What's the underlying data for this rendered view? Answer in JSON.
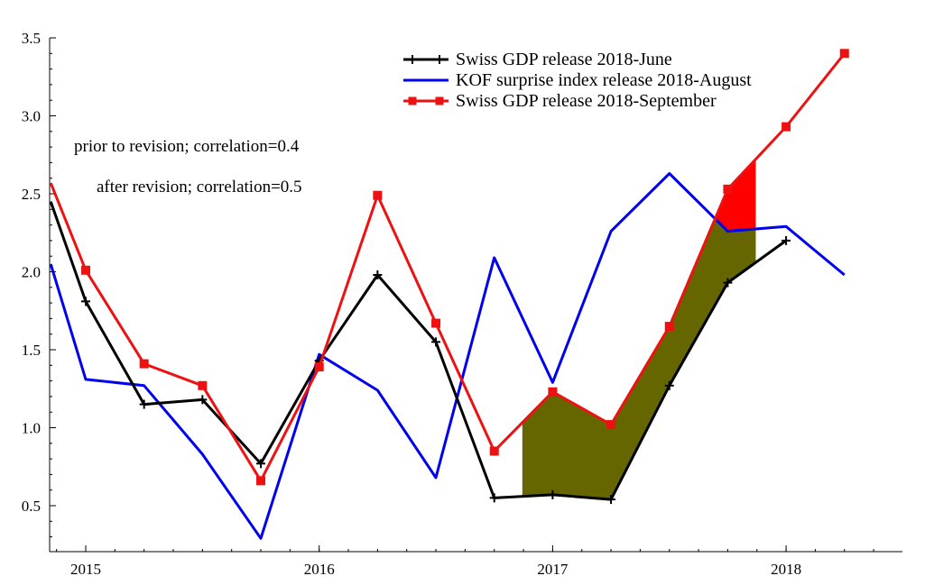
{
  "chart_data": {
    "type": "line",
    "title": "",
    "xlabel": "",
    "ylabel": "",
    "xlim": [
      2014.85,
      2018.5
    ],
    "ylim": [
      0.3,
      3.5
    ],
    "x_ticks": [
      2015,
      2016,
      2017,
      2018
    ],
    "y_ticks": [
      0.5,
      1.0,
      1.5,
      2.0,
      2.5,
      3.0,
      3.5
    ],
    "y_tick_labels": [
      "0.5",
      "1.0",
      "1.5",
      "2.0",
      "2.5",
      "3.0",
      "3.5"
    ],
    "x_tick_labels": [
      "2015",
      "2016",
      "2017",
      "2018"
    ],
    "grid": false,
    "legend_position": "top-right",
    "series": [
      {
        "name": "Swiss GDP release 2018-June",
        "color": "#000000",
        "marker": "plus",
        "x": [
          2014.85,
          2015.0,
          2015.25,
          2015.5,
          2015.75,
          2016.0,
          2016.25,
          2016.5,
          2016.75,
          2017.0,
          2017.25,
          2017.5,
          2017.75,
          2018.0
        ],
        "y": [
          2.45,
          1.81,
          1.15,
          1.18,
          0.77,
          1.43,
          1.98,
          1.55,
          0.55,
          0.57,
          0.54,
          1.27,
          1.93,
          2.2
        ]
      },
      {
        "name": "KOF surprise index release 2018-August",
        "color": "#0000ee",
        "marker": "none",
        "x": [
          2014.85,
          2015.0,
          2015.25,
          2015.5,
          2015.75,
          2016.0,
          2016.25,
          2016.5,
          2016.75,
          2017.0,
          2017.25,
          2017.5,
          2017.75,
          2018.0,
          2018.25
        ],
        "y": [
          2.05,
          1.31,
          1.27,
          0.83,
          0.29,
          1.47,
          1.24,
          0.68,
          2.09,
          1.29,
          2.26,
          2.63,
          2.26,
          2.29,
          1.98
        ]
      },
      {
        "name": "Swiss GDP release 2018-September",
        "color": "#ee1111",
        "marker": "square",
        "x": [
          2014.85,
          2015.0,
          2015.25,
          2015.5,
          2015.75,
          2016.0,
          2016.25,
          2016.5,
          2016.75,
          2017.0,
          2017.25,
          2017.5,
          2017.75,
          2018.0,
          2018.25
        ],
        "y": [
          2.57,
          2.01,
          1.41,
          1.27,
          0.66,
          1.39,
          2.49,
          1.67,
          0.85,
          1.23,
          1.02,
          1.65,
          2.53,
          2.93,
          3.4
        ]
      }
    ],
    "shaded_regions": [
      {
        "color": "#666600",
        "x_start": 2016.87,
        "x_end": 2017.87,
        "between": [
          "Swiss GDP release 2018-September",
          "Swiss GDP release 2018-June"
        ]
      },
      {
        "color": "#ff0000",
        "x_start": 2017.7,
        "x_end": 2017.87,
        "between": [
          "Swiss GDP release 2018-September",
          "KOF surprise index release 2018-August"
        ]
      }
    ],
    "annotations": [
      "prior to revision; correlation=0.4",
      "after revision; correlation=0.5"
    ]
  }
}
